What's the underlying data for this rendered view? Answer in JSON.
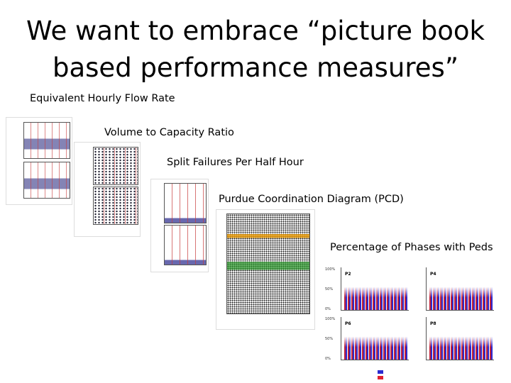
{
  "title": [
    "We want to embrace “picture book",
    "based performance measures”"
  ],
  "panels": [
    {
      "label": "Equivalent Hourly Flow Rate"
    },
    {
      "label": "Volume to Capacity Ratio"
    },
    {
      "label": "Split Failures Per Half Hour"
    },
    {
      "label": "Purdue Coordination Diagram (PCD)"
    },
    {
      "label": "Percentage of Phases with Peds",
      "phases": [
        "P2",
        "P4",
        "P6",
        "P8"
      ],
      "axis_labels": [
        "100%",
        "50%",
        "0%"
      ]
    }
  ]
}
